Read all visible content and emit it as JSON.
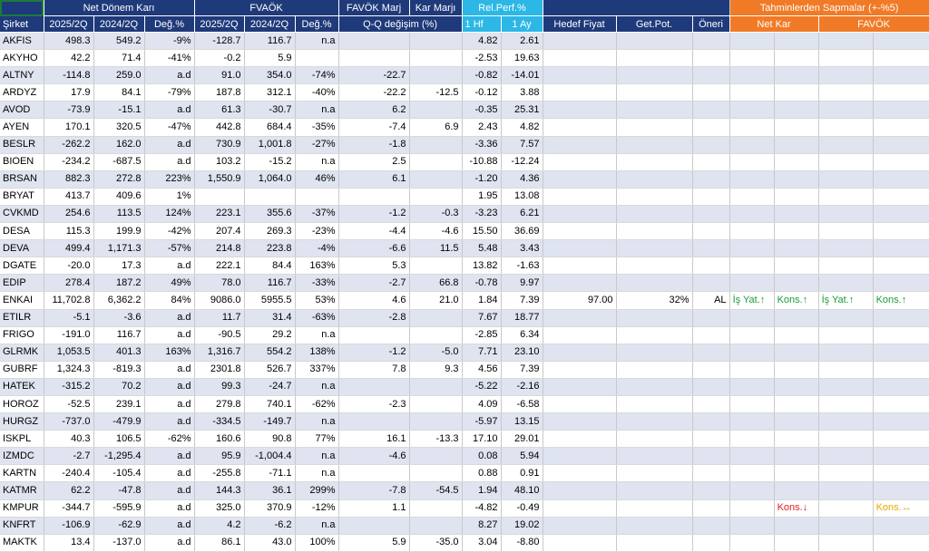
{
  "header": {
    "group_net": "Net Dönem Karı",
    "group_favok": "FVAÖK",
    "group_margin": "FAVÖK Marj",
    "group_karmarj": "Kar Marjı",
    "group_relperf": "Rel.Perf.%",
    "group_dev": "Tahminlerden Sapmalar (+-%5)",
    "sirket": "Şirket",
    "c_2025": "2025/2Q",
    "c_2024": "2024/2Q",
    "c_deg": "Değ.%",
    "c_f2025": "2025/2Q",
    "c_f2024": "2024/2Q",
    "c_fdeg": "Değ.%",
    "c_qq": "Q-Q değişim (%)",
    "c_1hf": "1 Hf",
    "c_1ay": "1 Ay",
    "c_hedef": "Hedef Fiyat",
    "c_getpot": "Get.Pot.",
    "c_oneri": "Öneri",
    "c_netkar": "Net Kar",
    "c_favok": "FAVÖK"
  },
  "rows": [
    {
      "t": "AKFIS",
      "a": "498.3",
      "b": "549.2",
      "c": "-9%",
      "d": "-128.7",
      "e": "116.7",
      "f": "n.a",
      "g": "",
      "h": "",
      "i": "4.82",
      "j": "2.61",
      "k": "",
      "l": "",
      "m": "",
      "n": "",
      "o": "",
      "p": "",
      "q": ""
    },
    {
      "t": "AKYHO",
      "a": "42.2",
      "b": "71.4",
      "c": "-41%",
      "d": "-0.2",
      "e": "5.9",
      "f": "",
      "g": "",
      "h": "",
      "i": "-2.53",
      "j": "19.63",
      "k": "",
      "l": "",
      "m": "",
      "n": "",
      "o": "",
      "p": "",
      "q": ""
    },
    {
      "t": "ALTNY",
      "a": "-114.8",
      "b": "259.0",
      "c": "a.d",
      "d": "91.0",
      "e": "354.0",
      "f": "-74%",
      "g": "-22.7",
      "h": "",
      "i": "-0.82",
      "j": "-14.01",
      "k": "",
      "l": "",
      "m": "",
      "n": "",
      "o": "",
      "p": "",
      "q": ""
    },
    {
      "t": "ARDYZ",
      "a": "17.9",
      "b": "84.1",
      "c": "-79%",
      "d": "187.8",
      "e": "312.1",
      "f": "-40%",
      "g": "-22.2",
      "h": "-12.5",
      "i": "-0.12",
      "j": "3.88",
      "k": "",
      "l": "",
      "m": "",
      "n": "",
      "o": "",
      "p": "",
      "q": ""
    },
    {
      "t": "AVOD",
      "a": "-73.9",
      "b": "-15.1",
      "c": "a.d",
      "d": "61.3",
      "e": "-30.7",
      "f": "n.a",
      "g": "6.2",
      "h": "",
      "i": "-0.35",
      "j": "25.31",
      "k": "",
      "l": "",
      "m": "",
      "n": "",
      "o": "",
      "p": "",
      "q": ""
    },
    {
      "t": "AYEN",
      "a": "170.1",
      "b": "320.5",
      "c": "-47%",
      "d": "442.8",
      "e": "684.4",
      "f": "-35%",
      "g": "-7.4",
      "h": "6.9",
      "i": "2.43",
      "j": "4.82",
      "k": "",
      "l": "",
      "m": "",
      "n": "",
      "o": "",
      "p": "",
      "q": ""
    },
    {
      "t": "BESLR",
      "a": "-262.2",
      "b": "162.0",
      "c": "a.d",
      "d": "730.9",
      "e": "1,001.8",
      "f": "-27%",
      "g": "-1.8",
      "h": "",
      "i": "-3.36",
      "j": "7.57",
      "k": "",
      "l": "",
      "m": "",
      "n": "",
      "o": "",
      "p": "",
      "q": ""
    },
    {
      "t": "BIOEN",
      "a": "-234.2",
      "b": "-687.5",
      "c": "a.d",
      "d": "103.2",
      "e": "-15.2",
      "f": "n.a",
      "g": "2.5",
      "h": "",
      "i": "-10.88",
      "j": "-12.24",
      "k": "",
      "l": "",
      "m": "",
      "n": "",
      "o": "",
      "p": "",
      "q": ""
    },
    {
      "t": "BRSAN",
      "a": "882.3",
      "b": "272.8",
      "c": "223%",
      "d": "1,550.9",
      "e": "1,064.0",
      "f": "46%",
      "g": "6.1",
      "h": "",
      "i": "-1.20",
      "j": "4.36",
      "k": "",
      "l": "",
      "m": "",
      "n": "",
      "o": "",
      "p": "",
      "q": ""
    },
    {
      "t": "BRYAT",
      "a": "413.7",
      "b": "409.6",
      "c": "1%",
      "d": "",
      "e": "",
      "f": "",
      "g": "",
      "h": "",
      "i": "1.95",
      "j": "13.08",
      "k": "",
      "l": "",
      "m": "",
      "n": "",
      "o": "",
      "p": "",
      "q": ""
    },
    {
      "t": "CVKMD",
      "a": "254.6",
      "b": "113.5",
      "c": "124%",
      "d": "223.1",
      "e": "355.6",
      "f": "-37%",
      "g": "-1.2",
      "h": "-0.3",
      "i": "-3.23",
      "j": "6.21",
      "k": "",
      "l": "",
      "m": "",
      "n": "",
      "o": "",
      "p": "",
      "q": ""
    },
    {
      "t": "DESA",
      "a": "115.3",
      "b": "199.9",
      "c": "-42%",
      "d": "207.4",
      "e": "269.3",
      "f": "-23%",
      "g": "-4.4",
      "h": "-4.6",
      "i": "15.50",
      "j": "36.69",
      "k": "",
      "l": "",
      "m": "",
      "n": "",
      "o": "",
      "p": "",
      "q": ""
    },
    {
      "t": "DEVA",
      "a": "499.4",
      "b": "1,171.3",
      "c": "-57%",
      "d": "214.8",
      "e": "223.8",
      "f": "-4%",
      "g": "-6.6",
      "h": "11.5",
      "i": "5.48",
      "j": "3.43",
      "k": "",
      "l": "",
      "m": "",
      "n": "",
      "o": "",
      "p": "",
      "q": ""
    },
    {
      "t": "DGATE",
      "a": "-20.0",
      "b": "17.3",
      "c": "a.d",
      "d": "222.1",
      "e": "84.4",
      "f": "163%",
      "g": "5.3",
      "h": "",
      "i": "13.82",
      "j": "-1.63",
      "k": "",
      "l": "",
      "m": "",
      "n": "",
      "o": "",
      "p": "",
      "q": ""
    },
    {
      "t": "EDIP",
      "a": "278.4",
      "b": "187.2",
      "c": "49%",
      "d": "78.0",
      "e": "116.7",
      "f": "-33%",
      "g": "-2.7",
      "h": "66.8",
      "i": "-0.78",
      "j": "9.97",
      "k": "",
      "l": "",
      "m": "",
      "n": "",
      "o": "",
      "p": "",
      "q": ""
    },
    {
      "t": "ENKAI",
      "a": "11,702.8",
      "b": "6,362.2",
      "c": "84%",
      "d": "9086.0",
      "e": "5955.5",
      "f": "53%",
      "g": "4.6",
      "h": "21.0",
      "i": "1.84",
      "j": "7.39",
      "k": "97.00",
      "l": "32%",
      "m": "AL",
      "n": "İş Yat.↑",
      "o": "Kons.↑",
      "p": "İş Yat.↑",
      "q": "Kons.↑",
      "nc": "gr",
      "oc": "gr",
      "pc": "gr",
      "qc": "gr"
    },
    {
      "t": "ETILR",
      "a": "-5.1",
      "b": "-3.6",
      "c": "a.d",
      "d": "11.7",
      "e": "31.4",
      "f": "-63%",
      "g": "-2.8",
      "h": "",
      "i": "7.67",
      "j": "18.77",
      "k": "",
      "l": "",
      "m": "",
      "n": "",
      "o": "",
      "p": "",
      "q": ""
    },
    {
      "t": "FRIGO",
      "a": "-191.0",
      "b": "116.7",
      "c": "a.d",
      "d": "-90.5",
      "e": "29.2",
      "f": "n.a",
      "g": "",
      "h": "",
      "i": "-2.85",
      "j": "6.34",
      "k": "",
      "l": "",
      "m": "",
      "n": "",
      "o": "",
      "p": "",
      "q": ""
    },
    {
      "t": "GLRMK",
      "a": "1,053.5",
      "b": "401.3",
      "c": "163%",
      "d": "1,316.7",
      "e": "554.2",
      "f": "138%",
      "g": "-1.2",
      "h": "-5.0",
      "i": "7.71",
      "j": "23.10",
      "k": "",
      "l": "",
      "m": "",
      "n": "",
      "o": "",
      "p": "",
      "q": ""
    },
    {
      "t": "GUBRF",
      "a": "1,324.3",
      "b": "-819.3",
      "c": "a.d",
      "d": "2301.8",
      "e": "526.7",
      "f": "337%",
      "g": "7.8",
      "h": "9.3",
      "i": "4.56",
      "j": "7.39",
      "k": "",
      "l": "",
      "m": "",
      "n": "",
      "o": "",
      "p": "",
      "q": ""
    },
    {
      "t": "HATEK",
      "a": "-315.2",
      "b": "70.2",
      "c": "a.d",
      "d": "99.3",
      "e": "-24.7",
      "f": "n.a",
      "g": "",
      "h": "",
      "i": "-5.22",
      "j": "-2.16",
      "k": "",
      "l": "",
      "m": "",
      "n": "",
      "o": "",
      "p": "",
      "q": ""
    },
    {
      "t": "HOROZ",
      "a": "-52.5",
      "b": "239.1",
      "c": "a.d",
      "d": "279.8",
      "e": "740.1",
      "f": "-62%",
      "g": "-2.3",
      "h": "",
      "i": "4.09",
      "j": "-6.58",
      "k": "",
      "l": "",
      "m": "",
      "n": "",
      "o": "",
      "p": "",
      "q": ""
    },
    {
      "t": "HURGZ",
      "a": "-737.0",
      "b": "-479.9",
      "c": "a.d",
      "d": "-334.5",
      "e": "-149.7",
      "f": "n.a",
      "g": "",
      "h": "",
      "i": "-5.97",
      "j": "13.15",
      "k": "",
      "l": "",
      "m": "",
      "n": "",
      "o": "",
      "p": "",
      "q": ""
    },
    {
      "t": "ISKPL",
      "a": "40.3",
      "b": "106.5",
      "c": "-62%",
      "d": "160.6",
      "e": "90.8",
      "f": "77%",
      "g": "16.1",
      "h": "-13.3",
      "i": "17.10",
      "j": "29.01",
      "k": "",
      "l": "",
      "m": "",
      "n": "",
      "o": "",
      "p": "",
      "q": ""
    },
    {
      "t": "IZMDC",
      "a": "-2.7",
      "b": "-1,295.4",
      "c": "a.d",
      "d": "95.9",
      "e": "-1,004.4",
      "f": "n.a",
      "g": "-4.6",
      "h": "",
      "i": "0.08",
      "j": "5.94",
      "k": "",
      "l": "",
      "m": "",
      "n": "",
      "o": "",
      "p": "",
      "q": ""
    },
    {
      "t": "KARTN",
      "a": "-240.4",
      "b": "-105.4",
      "c": "a.d",
      "d": "-255.8",
      "e": "-71.1",
      "f": "n.a",
      "g": "",
      "h": "",
      "i": "0.88",
      "j": "0.91",
      "k": "",
      "l": "",
      "m": "",
      "n": "",
      "o": "",
      "p": "",
      "q": ""
    },
    {
      "t": "KATMR",
      "a": "62.2",
      "b": "-47.8",
      "c": "a.d",
      "d": "144.3",
      "e": "36.1",
      "f": "299%",
      "g": "-7.8",
      "h": "-54.5",
      "i": "1.94",
      "j": "48.10",
      "k": "",
      "l": "",
      "m": "",
      "n": "",
      "o": "",
      "p": "",
      "q": ""
    },
    {
      "t": "KMPUR",
      "a": "-344.7",
      "b": "-595.9",
      "c": "a.d",
      "d": "325.0",
      "e": "370.9",
      "f": "-12%",
      "g": "1.1",
      "h": "",
      "i": "-4.82",
      "j": "-0.49",
      "k": "",
      "l": "",
      "m": "",
      "n": "",
      "o": "Kons.↓",
      "p": "",
      "q": "Kons.↔",
      "oc": "rd",
      "qc": "yl"
    },
    {
      "t": "KNFRT",
      "a": "-106.9",
      "b": "-62.9",
      "c": "a.d",
      "d": "4.2",
      "e": "-6.2",
      "f": "n.a",
      "g": "",
      "h": "",
      "i": "8.27",
      "j": "19.02",
      "k": "",
      "l": "",
      "m": "",
      "n": "",
      "o": "",
      "p": "",
      "q": ""
    },
    {
      "t": "MAKTK",
      "a": "13.4",
      "b": "-137.0",
      "c": "a.d",
      "d": "86.1",
      "e": "43.0",
      "f": "100%",
      "g": "5.9",
      "h": "-35.0",
      "i": "3.04",
      "j": "-8.80",
      "k": "",
      "l": "",
      "m": "",
      "n": "",
      "o": "",
      "p": "",
      "q": ""
    }
  ]
}
